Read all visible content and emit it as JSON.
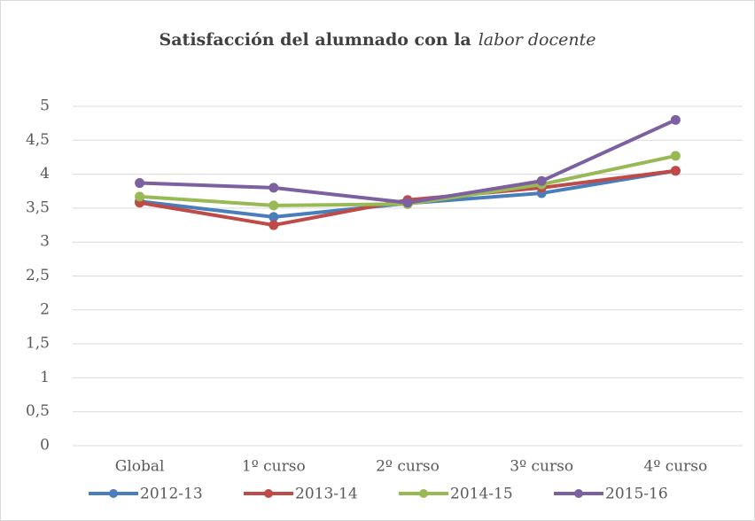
{
  "chart_data": {
    "type": "line",
    "title": [
      "Satisfacción del alumnado con la",
      "labor docente"
    ],
    "categories": [
      "Global",
      "1º curso",
      "2º curso",
      "3º curso",
      "4º curso"
    ],
    "series": [
      {
        "name": "2012-13",
        "color": "#4a7ebb",
        "values": [
          3.6,
          3.37,
          3.57,
          3.72,
          4.05
        ]
      },
      {
        "name": "2013-14",
        "color": "#be4b48",
        "values": [
          3.58,
          3.25,
          3.62,
          3.8,
          4.05
        ]
      },
      {
        "name": "2014-15",
        "color": "#98b954",
        "values": [
          3.67,
          3.54,
          3.56,
          3.85,
          4.27
        ]
      },
      {
        "name": "2015-16",
        "color": "#7d60a0",
        "values": [
          3.87,
          3.8,
          3.58,
          3.9,
          4.8
        ]
      }
    ],
    "ylim": [
      0,
      5
    ],
    "yticks": [
      0,
      {
        "value": 0.5,
        "label": "0,5"
      },
      1,
      {
        "value": 1.5,
        "label": "1,5"
      },
      2,
      {
        "value": 2.5,
        "label": "2,5"
      },
      3,
      {
        "value": 3.5,
        "label": "3,5"
      },
      4,
      {
        "value": 4.5,
        "label": "4,5"
      },
      5
    ],
    "grid": true,
    "legend": "bottom"
  }
}
